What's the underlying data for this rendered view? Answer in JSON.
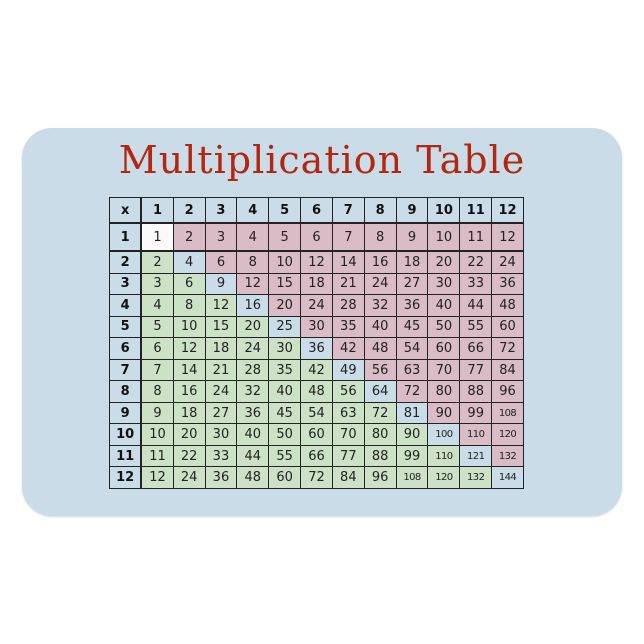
{
  "title": "Multiplication Table",
  "colors": {
    "magnet": "#c9dce8",
    "title": "#b3260f",
    "above_diagonal": "#d9bcc5",
    "below_diagonal": "#cde1c6",
    "diagonal": "#c9dce8"
  },
  "table": {
    "corner": "x",
    "headers": [
      "1",
      "2",
      "3",
      "4",
      "5",
      "6",
      "7",
      "8",
      "9",
      "10",
      "11",
      "12"
    ],
    "rows": [
      {
        "label": "1",
        "values": [
          "1",
          "2",
          "3",
          "4",
          "5",
          "6",
          "7",
          "8",
          "9",
          "10",
          "11",
          "12"
        ]
      },
      {
        "label": "2",
        "values": [
          "2",
          "4",
          "6",
          "8",
          "10",
          "12",
          "14",
          "16",
          "18",
          "20",
          "22",
          "24"
        ]
      },
      {
        "label": "3",
        "values": [
          "3",
          "6",
          "9",
          "12",
          "15",
          "18",
          "21",
          "24",
          "27",
          "30",
          "33",
          "36"
        ]
      },
      {
        "label": "4",
        "values": [
          "4",
          "8",
          "12",
          "16",
          "20",
          "24",
          "28",
          "32",
          "36",
          "40",
          "44",
          "48"
        ]
      },
      {
        "label": "5",
        "values": [
          "5",
          "10",
          "15",
          "20",
          "25",
          "30",
          "35",
          "40",
          "45",
          "50",
          "55",
          "60"
        ]
      },
      {
        "label": "6",
        "values": [
          "6",
          "12",
          "18",
          "24",
          "30",
          "36",
          "42",
          "48",
          "54",
          "60",
          "66",
          "72"
        ]
      },
      {
        "label": "7",
        "values": [
          "7",
          "14",
          "21",
          "28",
          "35",
          "42",
          "49",
          "56",
          "63",
          "70",
          "77",
          "84"
        ]
      },
      {
        "label": "8",
        "values": [
          "8",
          "16",
          "24",
          "32",
          "40",
          "48",
          "56",
          "64",
          "72",
          "80",
          "88",
          "96"
        ]
      },
      {
        "label": "9",
        "values": [
          "9",
          "18",
          "27",
          "36",
          "45",
          "54",
          "63",
          "72",
          "81",
          "90",
          "99",
          "108"
        ]
      },
      {
        "label": "10",
        "values": [
          "10",
          "20",
          "30",
          "40",
          "50",
          "60",
          "70",
          "80",
          "90",
          "100",
          "110",
          "120"
        ]
      },
      {
        "label": "11",
        "values": [
          "11",
          "22",
          "33",
          "44",
          "55",
          "66",
          "77",
          "88",
          "99",
          "110",
          "121",
          "132"
        ]
      },
      {
        "label": "12",
        "values": [
          "12",
          "24",
          "36",
          "48",
          "60",
          "72",
          "84",
          "96",
          "108",
          "120",
          "132",
          "144"
        ]
      }
    ]
  }
}
